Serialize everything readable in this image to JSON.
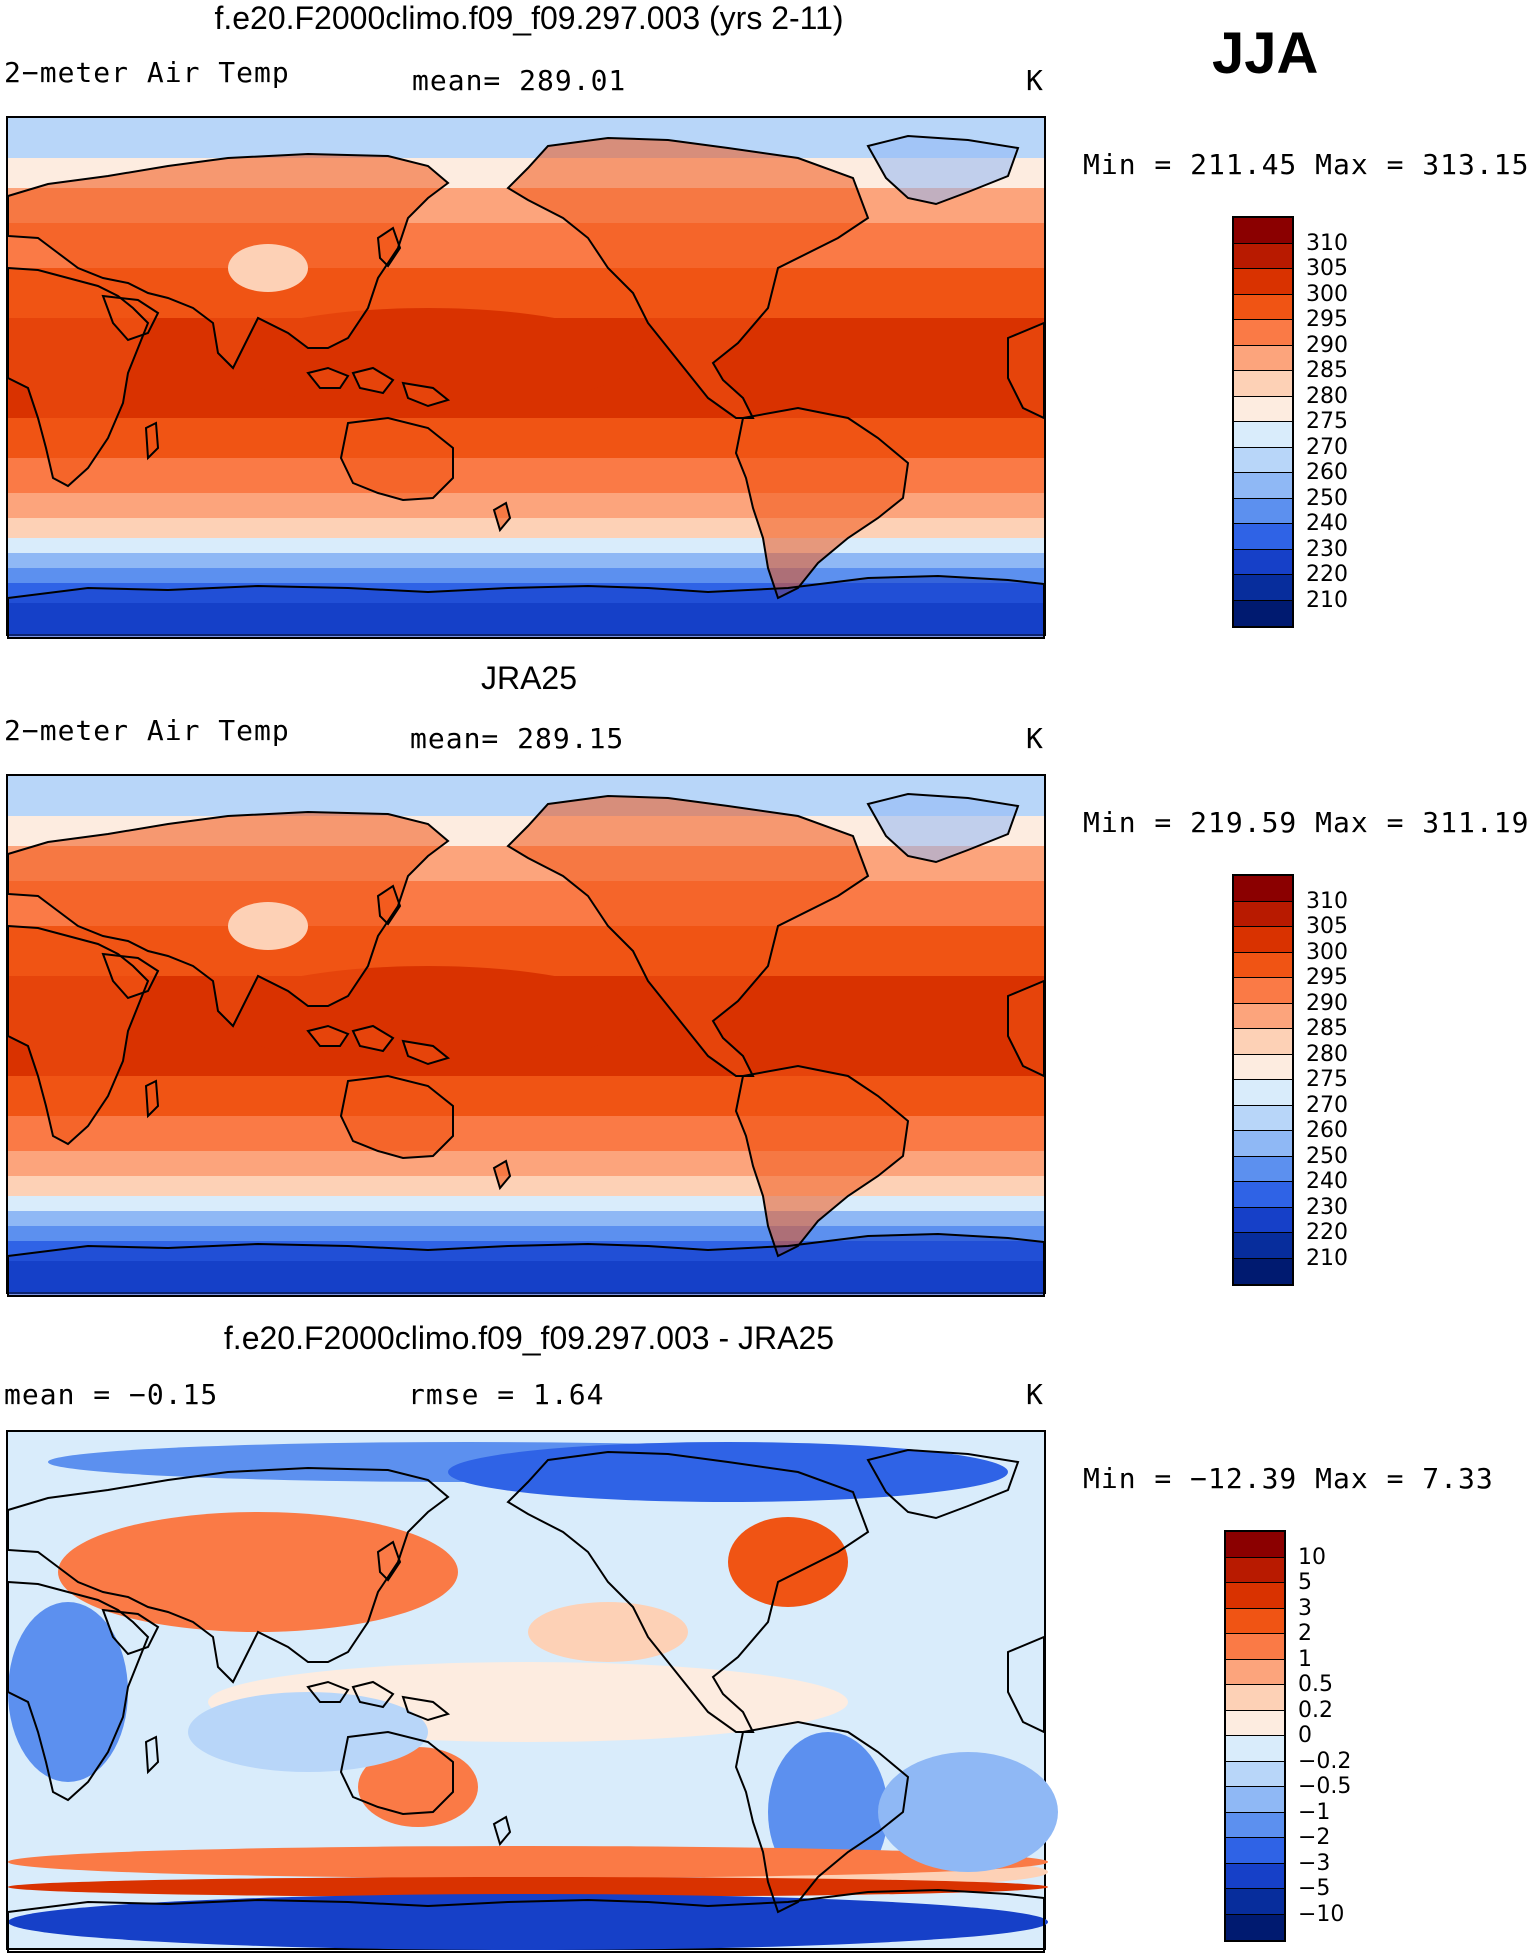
{
  "season": "JJA",
  "panels": [
    {
      "title": "f.e20.F2000climo.f09_f09.297.003 (yrs 2-11)",
      "left_label": "2−meter Air Temp",
      "center_label": "mean=  289.01",
      "units": "K",
      "stats": "Min  =  211.45  Max  =  313.15",
      "kind": "abs",
      "colorbar": {
        "labels": [
          "310",
          "305",
          "300",
          "295",
          "290",
          "285",
          "280",
          "275",
          "270",
          "260",
          "250",
          "240",
          "230",
          "220",
          "210"
        ],
        "colors": [
          "#8b0000",
          "#b81a00",
          "#d93200",
          "#f05414",
          "#fa7a46",
          "#fca47c",
          "#fdd1b6",
          "#fdece0",
          "#d9ecfb",
          "#b8d6f9",
          "#8fb8f5",
          "#5c90ef",
          "#2f63e6",
          "#1640c8",
          "#072d9c",
          "#001a70"
        ]
      }
    },
    {
      "title": "JRA25",
      "left_label": "2−meter Air Temp",
      "center_label": "mean=  289.15",
      "units": "K",
      "stats": "Min  =  219.59  Max  =  311.19",
      "kind": "abs",
      "colorbar": {
        "labels": [
          "310",
          "305",
          "300",
          "295",
          "290",
          "285",
          "280",
          "275",
          "270",
          "260",
          "250",
          "240",
          "230",
          "220",
          "210"
        ],
        "colors": [
          "#8b0000",
          "#b81a00",
          "#d93200",
          "#f05414",
          "#fa7a46",
          "#fca47c",
          "#fdd1b6",
          "#fdece0",
          "#d9ecfb",
          "#b8d6f9",
          "#8fb8f5",
          "#5c90ef",
          "#2f63e6",
          "#1640c8",
          "#072d9c",
          "#001a70"
        ]
      }
    },
    {
      "title": "f.e20.F2000climo.f09_f09.297.003 - JRA25",
      "left_label": "mean  =   −0.15",
      "center_label": "rmse  =    1.64",
      "units": "K",
      "stats": "Min  =  −12.39  Max  =     7.33",
      "kind": "diff",
      "colorbar": {
        "labels": [
          "10",
          "5",
          "3",
          "2",
          "1",
          "0.5",
          "0.2",
          "0",
          "−0.2",
          "−0.5",
          "−1",
          "−2",
          "−3",
          "−5",
          "−10"
        ],
        "colors": [
          "#8b0000",
          "#b81a00",
          "#d93200",
          "#f05414",
          "#fa7a46",
          "#fca47c",
          "#fdd1b6",
          "#fdece0",
          "#d9ecfb",
          "#b8d6f9",
          "#8fb8f5",
          "#5c90ef",
          "#2f63e6",
          "#1640c8",
          "#072d9c",
          "#001a70"
        ]
      }
    }
  ]
}
